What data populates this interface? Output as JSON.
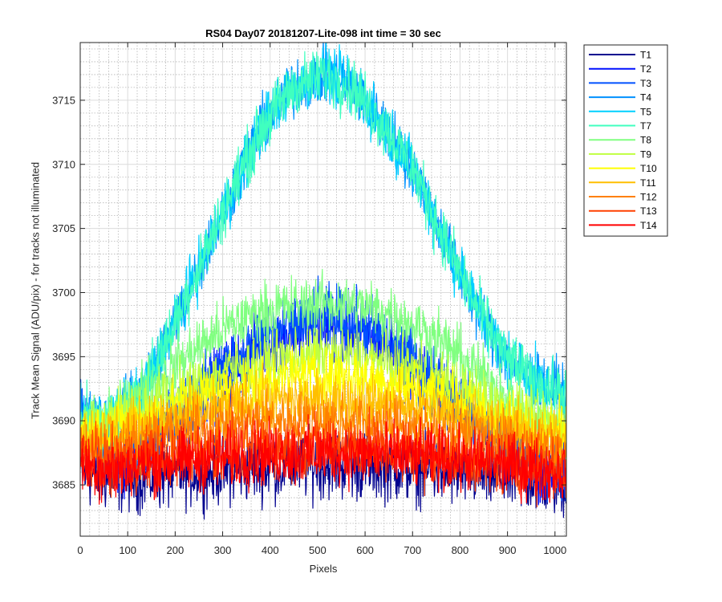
{
  "chart_data": {
    "type": "line",
    "title": "RS04 Day07 20181207-Lite-098 int time = 30 sec",
    "xlabel": "Pixels",
    "ylabel": "Track Mean Signal (ADU/pix) - for tracks not illuminated",
    "xlim": [
      0,
      1024
    ],
    "ylim": [
      3681,
      3719.5
    ],
    "xticks": [
      0,
      100,
      200,
      300,
      400,
      500,
      600,
      700,
      800,
      900,
      1000
    ],
    "yticks": [
      3685,
      3690,
      3695,
      3700,
      3705,
      3710,
      3715
    ],
    "grid": true,
    "minor_grid": true,
    "legend_position": "outside-top-right",
    "x_sampled": [
      0,
      64,
      128,
      192,
      256,
      320,
      384,
      448,
      512,
      576,
      640,
      704,
      768,
      832,
      896,
      960,
      1023
    ],
    "series": [
      {
        "name": "T1",
        "color": "#00008f",
        "noise": 2.6,
        "values": [
          3686,
          3685.5,
          3685.6,
          3685.8,
          3686,
          3686.2,
          3686.4,
          3686.5,
          3686.6,
          3686.5,
          3686.4,
          3686.2,
          3686,
          3685.8,
          3685.6,
          3685.4,
          3685
        ]
      },
      {
        "name": "T2",
        "color": "#0010ff",
        "noise": 2.6,
        "values": [
          3690.5,
          3686.5,
          3688,
          3690,
          3692,
          3694,
          3696,
          3697,
          3697.5,
          3697,
          3696,
          3694,
          3692,
          3690,
          3688,
          3686.5,
          3686
        ]
      },
      {
        "name": "T3",
        "color": "#0050ff",
        "noise": 2.6,
        "values": [
          3690.5,
          3687,
          3688.5,
          3690.5,
          3692.5,
          3694.5,
          3696.5,
          3697.5,
          3698,
          3697.5,
          3696.5,
          3694.5,
          3692.5,
          3690.5,
          3688.5,
          3687,
          3686.5
        ]
      },
      {
        "name": "T4",
        "color": "#0090ff",
        "noise": 2.2,
        "values": [
          3690,
          3690,
          3692,
          3697,
          3702.5,
          3708,
          3713,
          3716,
          3717,
          3716,
          3713,
          3709.5,
          3704,
          3699,
          3695,
          3693,
          3692
        ]
      },
      {
        "name": "T5",
        "color": "#00d0ff",
        "noise": 2.2,
        "values": [
          3690,
          3690,
          3692,
          3697,
          3702.5,
          3708,
          3713,
          3716,
          3717,
          3716,
          3713,
          3709.5,
          3704,
          3699,
          3695,
          3693,
          3692
        ]
      },
      {
        "name": "T7",
        "color": "#40ffbf",
        "noise": 2.2,
        "values": [
          3690,
          3690,
          3692,
          3697,
          3702.5,
          3708,
          3713,
          3716,
          3717,
          3716,
          3713,
          3709.5,
          3704,
          3699,
          3695,
          3693,
          3692
        ]
      },
      {
        "name": "T8",
        "color": "#80ff80",
        "noise": 2.2,
        "values": [
          3689,
          3690,
          3692,
          3694,
          3696,
          3697.5,
          3698.5,
          3699,
          3699.2,
          3699,
          3698.5,
          3697.5,
          3696,
          3694,
          3692,
          3690,
          3689
        ]
      },
      {
        "name": "T9",
        "color": "#bfff40",
        "noise": 2.2,
        "values": [
          3689,
          3690,
          3691,
          3692,
          3693,
          3694,
          3694.5,
          3695,
          3695.2,
          3695,
          3694.5,
          3694,
          3693,
          3692,
          3691,
          3690,
          3689.5
        ]
      },
      {
        "name": "T10",
        "color": "#ffff00",
        "noise": 2.2,
        "values": [
          3689,
          3689.5,
          3690,
          3691,
          3692,
          3692.5,
          3693,
          3693.5,
          3693.5,
          3693.5,
          3693,
          3692.5,
          3692,
          3691,
          3690,
          3689.5,
          3689
        ]
      },
      {
        "name": "T11",
        "color": "#ffbf00",
        "noise": 2.2,
        "values": [
          3689,
          3689,
          3689.5,
          3690,
          3690.5,
          3691,
          3691.5,
          3691.5,
          3691.5,
          3691.5,
          3691.2,
          3691,
          3690.5,
          3690,
          3689.5,
          3689,
          3688.5
        ]
      },
      {
        "name": "T12",
        "color": "#ff8000",
        "noise": 2.2,
        "values": [
          3688,
          3688,
          3688.5,
          3689,
          3689.5,
          3689.8,
          3690,
          3690,
          3690,
          3690,
          3689.8,
          3689.5,
          3689,
          3688.8,
          3688.5,
          3688,
          3687.5
        ]
      },
      {
        "name": "T13",
        "color": "#ff4000",
        "noise": 2.4,
        "values": [
          3687,
          3686.8,
          3687,
          3687.2,
          3687.5,
          3687.8,
          3688,
          3688,
          3688,
          3688,
          3687.8,
          3687.5,
          3687.2,
          3687,
          3686.8,
          3686.5,
          3686
        ]
      },
      {
        "name": "T14",
        "color": "#ff0000",
        "noise": 2.4,
        "values": [
          3686.5,
          3686.2,
          3686.5,
          3686.8,
          3687,
          3687.2,
          3687.3,
          3687.4,
          3687.5,
          3687.4,
          3687.3,
          3687.2,
          3687,
          3686.8,
          3686.5,
          3686.3,
          3686
        ]
      }
    ]
  }
}
